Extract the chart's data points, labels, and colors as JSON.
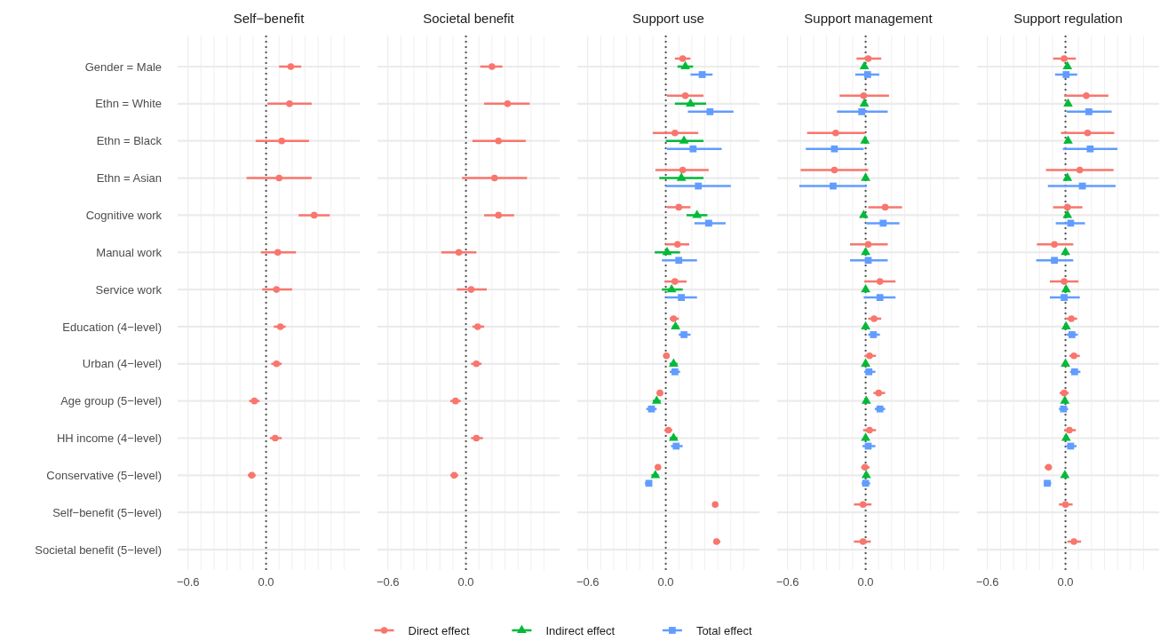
{
  "chart_data": [
    {
      "type": "scatter",
      "orientation": "horizontal",
      "title": "Self−benefit",
      "categories": [
        "Gender = Male",
        "Ethn = White",
        "Ethn = Black",
        "Ethn = Asian",
        "Cognitive work",
        "Manual work",
        "Service work",
        "Education (4−level)",
        "Urban (4−level)",
        "Age group (5−level)",
        "HH income (4−level)",
        "Conservative (5−level)",
        "Self−benefit (5−level)",
        "Societal benefit (5−level)"
      ],
      "xlim": [
        -0.68,
        0.72
      ],
      "xticks": [
        {
          "value": -0.6,
          "label": "−0.6"
        },
        {
          "value": -0.5,
          "label": null
        },
        {
          "value": -0.4,
          "label": null
        },
        {
          "value": -0.3,
          "label": null
        },
        {
          "value": -0.2,
          "label": null
        },
        {
          "value": -0.1,
          "label": null
        },
        {
          "value": 0,
          "label": "0.0"
        },
        {
          "value": 0.1,
          "label": null
        },
        {
          "value": 0.2,
          "label": null
        },
        {
          "value": 0.3,
          "label": null
        },
        {
          "value": 0.4,
          "label": null
        },
        {
          "value": 0.5,
          "label": null
        },
        {
          "value": 0.6,
          "label": null
        }
      ],
      "grid": true,
      "ref_lines": [
        {
          "axis": "x",
          "value": 0,
          "label": null,
          "color": "#555555",
          "line_style": "dotted"
        }
      ],
      "series": [
        {
          "color": "#f8766d",
          "marker": "circle",
          "values": [
            0.19,
            0.18,
            0.12,
            0.1,
            0.37,
            0.09,
            0.08,
            0.11,
            0.08,
            -0.09,
            0.07,
            -0.11,
            null,
            null
          ],
          "errors": [
            [
              0.1,
              0.27
            ],
            [
              0.01,
              0.35
            ],
            [
              -0.08,
              0.33
            ],
            [
              -0.15,
              0.35
            ],
            [
              0.25,
              0.49
            ],
            [
              -0.04,
              0.23
            ],
            [
              -0.03,
              0.2
            ],
            [
              0.06,
              0.15
            ],
            [
              0.04,
              0.12
            ],
            [
              -0.13,
              -0.05
            ],
            [
              0.03,
              0.12
            ],
            [
              -0.14,
              -0.08
            ],
            null,
            null
          ]
        }
      ]
    },
    {
      "type": "scatter",
      "orientation": "horizontal",
      "title": "Societal benefit",
      "tick_labels": "x",
      "xlim": [
        -0.68,
        0.72
      ],
      "xticks": [
        {
          "value": -0.6,
          "label": "−0.6"
        },
        {
          "value": -0.5,
          "label": null
        },
        {
          "value": -0.4,
          "label": null
        },
        {
          "value": -0.3,
          "label": null
        },
        {
          "value": -0.2,
          "label": null
        },
        {
          "value": -0.1,
          "label": null
        },
        {
          "value": 0,
          "label": "0.0"
        },
        {
          "value": 0.1,
          "label": null
        },
        {
          "value": 0.2,
          "label": null
        },
        {
          "value": 0.3,
          "label": null
        },
        {
          "value": 0.4,
          "label": null
        },
        {
          "value": 0.5,
          "label": null
        },
        {
          "value": 0.6,
          "label": null
        }
      ],
      "grid": true,
      "ref_lines": [
        {
          "axis": "x",
          "value": 0,
          "label": null,
          "color": "#555555",
          "line_style": "dotted"
        }
      ],
      "series": [
        {
          "color": "#f8766d",
          "marker": "circle",
          "values": [
            0.2,
            0.32,
            0.25,
            0.22,
            0.25,
            -0.055,
            0.04,
            0.09,
            0.08,
            -0.08,
            0.08,
            -0.09,
            null,
            null
          ],
          "errors": [
            [
              0.11,
              0.28
            ],
            [
              0.14,
              0.49
            ],
            [
              0.05,
              0.46
            ],
            [
              -0.03,
              0.47
            ],
            [
              0.14,
              0.37
            ],
            [
              -0.19,
              0.08
            ],
            [
              -0.07,
              0.16
            ],
            [
              0.05,
              0.14
            ],
            [
              0.04,
              0.12
            ],
            [
              -0.12,
              -0.04
            ],
            [
              0.04,
              0.13
            ],
            [
              -0.12,
              -0.06
            ],
            null,
            null
          ]
        }
      ]
    },
    {
      "type": "scatter",
      "orientation": "horizontal",
      "title": "Support use",
      "tick_labels": "x",
      "legend": "bottom",
      "xlim": [
        -0.68,
        0.72
      ],
      "xticks": [
        {
          "value": -0.6,
          "label": "−0.6"
        },
        {
          "value": -0.5,
          "label": null
        },
        {
          "value": -0.4,
          "label": null
        },
        {
          "value": -0.3,
          "label": null
        },
        {
          "value": -0.2,
          "label": null
        },
        {
          "value": -0.1,
          "label": null
        },
        {
          "value": 0,
          "label": "0.0"
        },
        {
          "value": 0.1,
          "label": null
        },
        {
          "value": 0.2,
          "label": null
        },
        {
          "value": 0.3,
          "label": null
        },
        {
          "value": 0.4,
          "label": null
        },
        {
          "value": 0.5,
          "label": null
        },
        {
          "value": 0.6,
          "label": null
        }
      ],
      "grid": true,
      "ref_lines": [
        {
          "axis": "x",
          "value": 0,
          "label": null,
          "color": "#555555",
          "line_style": "dotted"
        }
      ],
      "series": [
        {
          "name": "Direct effect",
          "color": "#f8766d",
          "marker": "circle",
          "values": [
            0.13,
            0.15,
            0.07,
            0.13,
            0.1,
            0.09,
            0.07,
            0.06,
            0.005,
            -0.045,
            0.02,
            -0.06,
            0.38,
            0.39
          ],
          "errors": [
            [
              0.07,
              0.19
            ],
            [
              0.01,
              0.29
            ],
            [
              -0.1,
              0.25
            ],
            [
              -0.08,
              0.33
            ],
            [
              0.01,
              0.19
            ],
            [
              0.0,
              0.18
            ],
            [
              -0.01,
              0.16
            ],
            [
              0.03,
              0.1
            ],
            [
              -0.02,
              0.03
            ],
            [
              -0.07,
              -0.02
            ],
            [
              -0.01,
              0.05
            ],
            [
              -0.07,
              -0.04
            ],
            [
              0.36,
              0.4
            ],
            [
              0.37,
              0.42
            ]
          ]
        },
        {
          "name": "Indirect effect",
          "color": "#00ba38",
          "marker": "triangle",
          "values": [
            0.15,
            0.19,
            0.14,
            0.12,
            0.24,
            0.01,
            0.045,
            0.075,
            0.06,
            -0.07,
            0.06,
            -0.08,
            null,
            null
          ],
          "errors": [
            [
              0.09,
              0.21
            ],
            [
              0.07,
              0.31
            ],
            [
              0.0,
              0.29
            ],
            [
              -0.05,
              0.29
            ],
            [
              0.16,
              0.32
            ],
            [
              -0.085,
              0.11
            ],
            [
              -0.03,
              0.13
            ],
            [
              0.05,
              0.1
            ],
            [
              0.03,
              0.09
            ],
            [
              -0.1,
              -0.04
            ],
            [
              0.03,
              0.09
            ],
            [
              -0.11,
              -0.055
            ],
            null,
            null
          ]
        },
        {
          "name": "Total effect",
          "color": "#619cff",
          "marker": "square",
          "values": [
            0.28,
            0.34,
            0.21,
            0.25,
            0.33,
            0.1,
            0.12,
            0.14,
            0.07,
            -0.11,
            0.08,
            -0.13,
            null,
            null
          ],
          "errors": [
            [
              0.19,
              0.36
            ],
            [
              0.17,
              0.52
            ],
            [
              0.01,
              0.43
            ],
            [
              0.0,
              0.5
            ],
            [
              0.22,
              0.46
            ],
            [
              -0.03,
              0.24
            ],
            [
              0.0,
              0.24
            ],
            [
              0.1,
              0.19
            ],
            [
              0.03,
              0.11
            ],
            [
              -0.15,
              -0.07
            ],
            [
              0.04,
              0.13
            ],
            [
              -0.16,
              -0.11
            ],
            null,
            null
          ]
        }
      ]
    },
    {
      "type": "scatter",
      "orientation": "horizontal",
      "title": "Support management",
      "tick_labels": "x",
      "xlim": [
        -0.68,
        0.72
      ],
      "xticks": [
        {
          "value": -0.6,
          "label": "−0.6"
        },
        {
          "value": -0.5,
          "label": null
        },
        {
          "value": -0.4,
          "label": null
        },
        {
          "value": -0.3,
          "label": null
        },
        {
          "value": -0.2,
          "label": null
        },
        {
          "value": -0.1,
          "label": null
        },
        {
          "value": 0,
          "label": "0.0"
        },
        {
          "value": 0.1,
          "label": null
        },
        {
          "value": 0.2,
          "label": null
        },
        {
          "value": 0.3,
          "label": null
        },
        {
          "value": 0.4,
          "label": null
        },
        {
          "value": 0.5,
          "label": null
        },
        {
          "value": 0.6,
          "label": null
        }
      ],
      "grid": true,
      "ref_lines": [
        {
          "axis": "x",
          "value": 0,
          "label": null,
          "color": "#555555",
          "line_style": "dotted"
        }
      ],
      "series": [
        {
          "color": "#f8766d",
          "marker": "circle",
          "values": [
            0.02,
            -0.015,
            -0.23,
            -0.24,
            0.15,
            0.02,
            0.11,
            0.065,
            0.03,
            0.1,
            0.03,
            -0.005,
            -0.02,
            -0.02
          ],
          "errors": [
            [
              -0.07,
              0.12
            ],
            [
              -0.2,
              0.18
            ],
            [
              -0.45,
              -0.005
            ],
            [
              -0.5,
              0.02
            ],
            [
              0.02,
              0.28
            ],
            [
              -0.12,
              0.17
            ],
            [
              -0.01,
              0.23
            ],
            [
              0.02,
              0.12
            ],
            [
              -0.005,
              0.08
            ],
            [
              0.06,
              0.15
            ],
            [
              -0.02,
              0.08
            ],
            [
              -0.035,
              0.03
            ],
            [
              -0.09,
              0.045
            ],
            [
              -0.09,
              0.04
            ]
          ]
        },
        {
          "color": "#00ba38",
          "marker": "triangle",
          "values": [
            -0.01,
            -0.01,
            -0.005,
            0,
            -0.015,
            0,
            0,
            0,
            0,
            0.005,
            0,
            0.005,
            null,
            null
          ]
        },
        {
          "color": "#619cff",
          "marker": "square",
          "values": [
            0.015,
            -0.03,
            -0.24,
            -0.25,
            0.135,
            0.02,
            0.11,
            0.06,
            0.025,
            0.11,
            0.02,
            0,
            null,
            null
          ],
          "errors": [
            [
              -0.08,
              0.105
            ],
            [
              -0.22,
              0.17
            ],
            [
              -0.46,
              -0.015
            ],
            [
              -0.51,
              0.01
            ],
            [
              0.005,
              0.26
            ],
            [
              -0.12,
              0.17
            ],
            [
              -0.015,
              0.23
            ],
            [
              0.02,
              0.11
            ],
            [
              -0.01,
              0.075
            ],
            [
              0.07,
              0.15
            ],
            [
              -0.025,
              0.075
            ],
            [
              -0.03,
              0.035
            ],
            null,
            null
          ]
        }
      ]
    },
    {
      "type": "scatter",
      "orientation": "horizontal",
      "title": "Support regulation",
      "tick_labels": "x",
      "xlim": [
        -0.68,
        0.72
      ],
      "xticks": [
        {
          "value": -0.6,
          "label": "−0.6"
        },
        {
          "value": -0.5,
          "label": null
        },
        {
          "value": -0.4,
          "label": null
        },
        {
          "value": -0.3,
          "label": null
        },
        {
          "value": -0.2,
          "label": null
        },
        {
          "value": -0.1,
          "label": null
        },
        {
          "value": 0,
          "label": "0.0"
        },
        {
          "value": 0.1,
          "label": null
        },
        {
          "value": 0.2,
          "label": null
        },
        {
          "value": 0.3,
          "label": null
        },
        {
          "value": 0.4,
          "label": null
        },
        {
          "value": 0.5,
          "label": null
        },
        {
          "value": 0.6,
          "label": null
        }
      ],
      "grid": true,
      "ref_lines": [
        {
          "axis": "x",
          "value": 0,
          "label": null,
          "color": "#555555",
          "line_style": "dotted"
        }
      ],
      "series": [
        {
          "color": "#f8766d",
          "marker": "circle",
          "values": [
            -0.01,
            0.16,
            0.17,
            0.11,
            0.015,
            -0.085,
            -0.01,
            0.045,
            0.065,
            -0.01,
            0.03,
            -0.13,
            0,
            0.065
          ],
          "errors": [
            [
              -0.095,
              0.08
            ],
            [
              -0.01,
              0.33
            ],
            [
              -0.035,
              0.375
            ],
            [
              -0.15,
              0.37
            ],
            [
              -0.095,
              0.13
            ],
            [
              -0.22,
              0.06
            ],
            [
              -0.12,
              0.1
            ],
            [
              0.0,
              0.09
            ],
            [
              0.03,
              0.11
            ],
            [
              -0.045,
              0.025
            ],
            [
              -0.01,
              0.08
            ],
            [
              -0.16,
              -0.105
            ],
            [
              -0.05,
              0.055
            ],
            [
              0.015,
              0.12
            ]
          ]
        },
        {
          "color": "#00ba38",
          "marker": "triangle",
          "values": [
            0.015,
            0.02,
            0.02,
            0.015,
            0.015,
            0,
            0.005,
            0.005,
            0,
            -0.005,
            0.005,
            -0.005,
            null,
            null
          ]
        },
        {
          "color": "#619cff",
          "marker": "square",
          "values": [
            0.005,
            0.18,
            0.19,
            0.13,
            0.04,
            -0.085,
            -0.01,
            0.05,
            0.07,
            -0.015,
            0.04,
            -0.14,
            null,
            null
          ],
          "errors": [
            [
              -0.08,
              0.09
            ],
            [
              0.01,
              0.355
            ],
            [
              -0.02,
              0.4
            ],
            [
              -0.135,
              0.385
            ],
            [
              -0.075,
              0.15
            ],
            [
              -0.225,
              0.06
            ],
            [
              -0.12,
              0.11
            ],
            [
              0.01,
              0.095
            ],
            [
              0.035,
              0.115
            ],
            [
              -0.05,
              0.02
            ],
            [
              0.005,
              0.085
            ],
            [
              -0.165,
              -0.11
            ],
            null,
            null
          ]
        }
      ]
    }
  ]
}
